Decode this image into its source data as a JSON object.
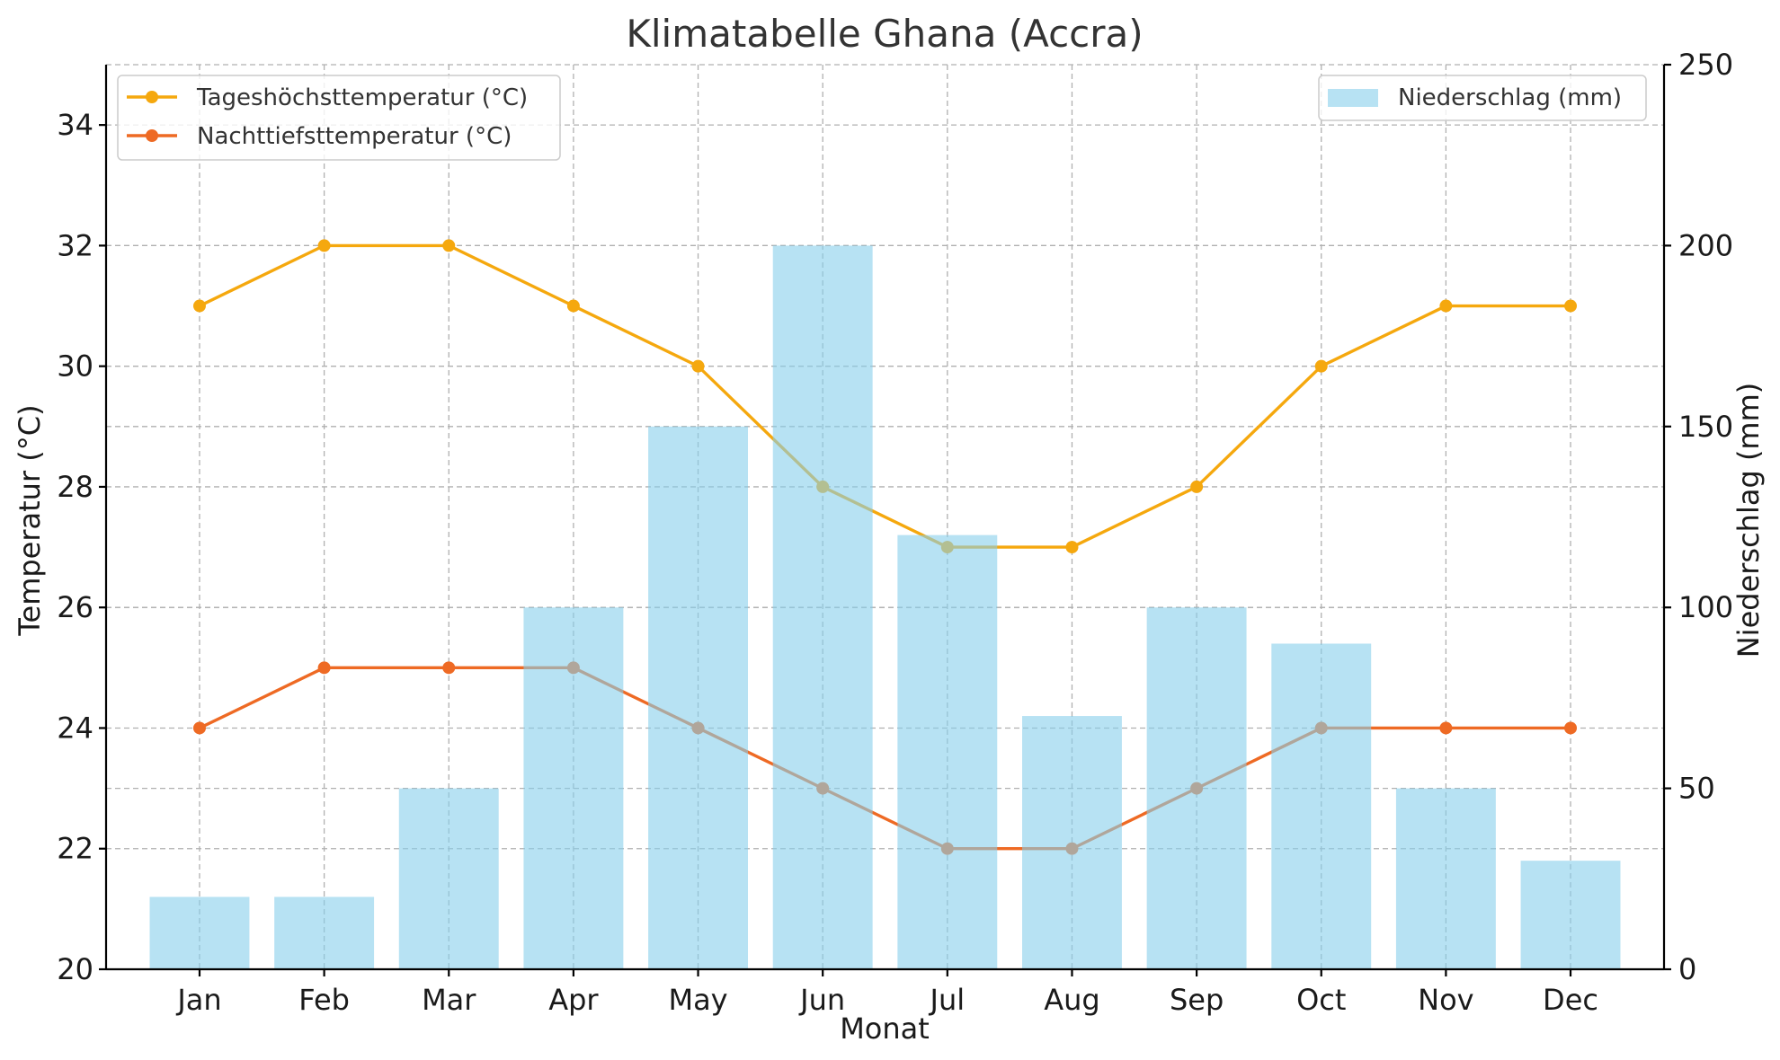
{
  "chart_data": {
    "type": "bar+line",
    "title": "Klimatabelle Ghana (Accra)",
    "xlabel": "Monat",
    "ylabel_left": "Temperatur (°C)",
    "ylabel_right": "Niederschlag (mm)",
    "categories": [
      "Jan",
      "Feb",
      "Mar",
      "Apr",
      "May",
      "Jun",
      "Jul",
      "Aug",
      "Sep",
      "Oct",
      "Nov",
      "Dec"
    ],
    "ylim_left": [
      20,
      35
    ],
    "yticks_left": [
      20,
      22,
      24,
      26,
      28,
      30,
      32,
      34
    ],
    "ylim_right": [
      0,
      250
    ],
    "yticks_right": [
      0,
      50,
      100,
      150,
      200,
      250
    ],
    "grid": true,
    "legend_lines_position": "top-left",
    "legend_bars_position": "top-right",
    "lines": [
      {
        "name": "Tageshöchsttemperatur (°C)",
        "color": "#f5a80e",
        "values": [
          31,
          32,
          32,
          31,
          30,
          28,
          27,
          27,
          28,
          30,
          31,
          31
        ]
      },
      {
        "name": "Nachttiefsttemperatur (°C)",
        "color": "#ee6a24",
        "values": [
          24,
          25,
          25,
          25,
          24,
          23,
          22,
          22,
          23,
          24,
          24,
          24
        ]
      }
    ],
    "bars": {
      "name": "Niederschlag (mm)",
      "color": "#87ceeb",
      "opacity": 0.6,
      "values": [
        20,
        20,
        50,
        100,
        150,
        200,
        120,
        70,
        100,
        90,
        50,
        30
      ]
    }
  }
}
